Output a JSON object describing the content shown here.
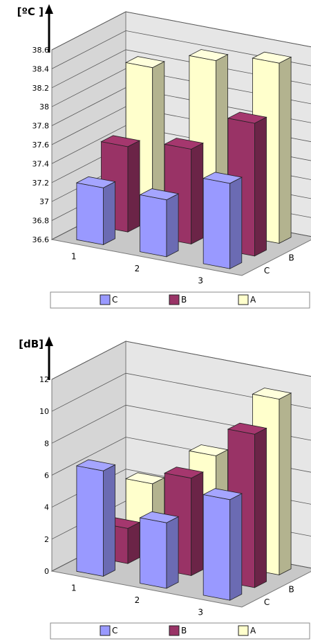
{
  "colors": {
    "C": "#9999ff",
    "B": "#993366",
    "A": "#ffffcc",
    "wall": "#e6e6e6",
    "floor": "#c8c8c8"
  },
  "chart_data": [
    {
      "type": "bar",
      "unit_label": "[ºC ]",
      "categories": [
        "1",
        "2",
        "3"
      ],
      "depth_labels": [
        "A",
        "B",
        "C"
      ],
      "ylim": [
        36.6,
        38.6
      ],
      "yticks": [
        "38.6",
        "38.4",
        "38.2",
        "38",
        "37.8",
        "37.6",
        "37.4",
        "37.2",
        "37",
        "36.8",
        "36.6"
      ],
      "series": [
        {
          "name": "C",
          "values": [
            37.2,
            37.2,
            37.5
          ]
        },
        {
          "name": "B",
          "values": [
            37.5,
            37.6,
            38.0
          ]
        },
        {
          "name": "A",
          "values": [
            38.2,
            38.4,
            38.5
          ]
        }
      ],
      "legend": [
        "C",
        "B",
        "A"
      ],
      "grid": true
    },
    {
      "type": "bar",
      "unit_label": "[dB]",
      "categories": [
        "1",
        "2",
        "3"
      ],
      "depth_labels": [
        "A",
        "B",
        "C"
      ],
      "ylim": [
        0,
        12
      ],
      "yticks": [
        "12",
        "10",
        "8",
        "6",
        "4",
        "2",
        "0"
      ],
      "series": [
        {
          "name": "C",
          "values": [
            6.6,
            4.1,
            6.3
          ]
        },
        {
          "name": "B",
          "values": [
            2.2,
            6.1,
            9.6
          ]
        },
        {
          "name": "A",
          "values": [
            4.2,
            6.7,
            11.0
          ]
        }
      ],
      "legend": [
        "C",
        "B",
        "A"
      ],
      "grid": true
    }
  ]
}
